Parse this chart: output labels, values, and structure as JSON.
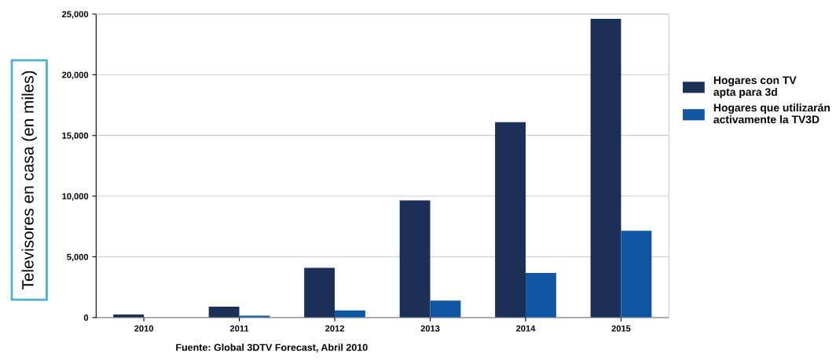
{
  "chart_data": {
    "type": "bar",
    "ylabel": "Televisores en casa (en miles)",
    "categories": [
      "2010",
      "2011",
      "2012",
      "2013",
      "2014",
      "2015"
    ],
    "series": [
      {
        "name": "Hogares con TV\napta para 3d",
        "color": "#1c2f57",
        "values": [
          250,
          900,
          4100,
          9650,
          16100,
          24600
        ]
      },
      {
        "name": "Hogares que utilizarán\nactivamente la TV3D",
        "color": "#1156a3",
        "values": [
          null,
          150,
          580,
          1400,
          3670,
          7150
        ]
      }
    ],
    "ylim": [
      0,
      25000
    ],
    "yticks": [
      {
        "value": 0,
        "label": "0"
      },
      {
        "value": 5000,
        "label": "5,000"
      },
      {
        "value": 10000,
        "label": "10,000"
      },
      {
        "value": 15000,
        "label": "15,000"
      },
      {
        "value": 20000,
        "label": "20,000"
      },
      {
        "value": 25000,
        "label": "25,000"
      }
    ],
    "grid": "y",
    "legend": "right",
    "annotations": [
      "Fuente: Global 3DTV Forecast, Abril 2010"
    ]
  }
}
